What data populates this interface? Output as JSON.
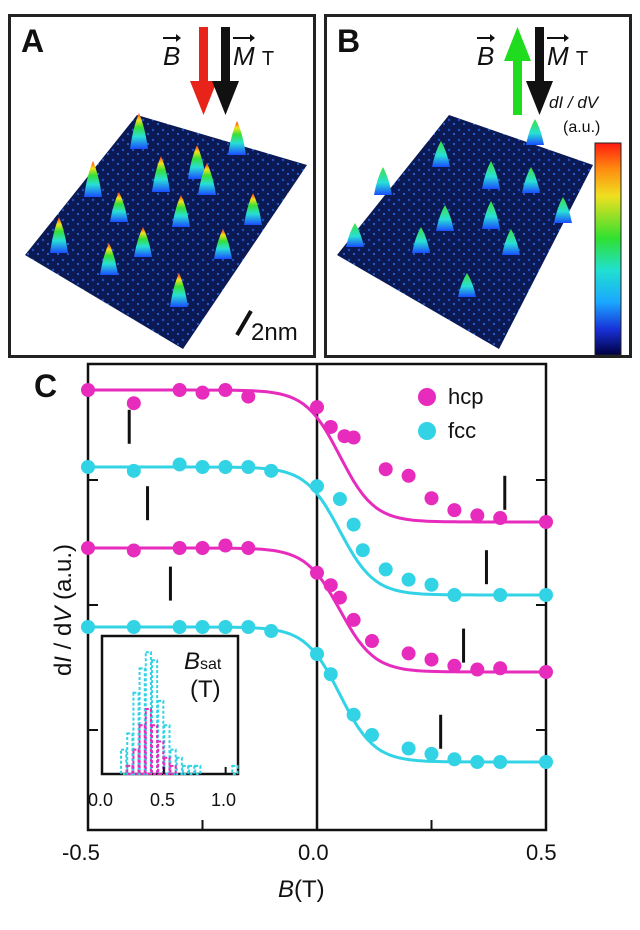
{
  "panels": {
    "a": {
      "letter": "A",
      "b_label": "B",
      "m_label": "M",
      "m_sub": "T",
      "scale_label": "2nm",
      "field_arrow_color": "#e8241a",
      "tip_arrow_color": "#111111"
    },
    "b": {
      "letter": "B",
      "b_label": "B",
      "m_label": "M",
      "m_sub": "T",
      "field_arrow_color": "#1fdc1f",
      "tip_arrow_color": "#111111",
      "colorbar_label_1": "dI / dV",
      "colorbar_label_2": "(a.u.)"
    }
  },
  "chart_data": [
    {
      "type": "scatter",
      "panel": "C",
      "xlabel": "B(T)",
      "ylabel": "dI / dV (a.u.)",
      "xlim": [
        -0.5,
        0.5
      ],
      "xticks": [
        "-0.5",
        "0.0",
        "0.5"
      ],
      "legend": [
        {
          "name": "hcp",
          "color": "#e62bbd"
        },
        {
          "name": "fcc",
          "color": "#33d3e6"
        }
      ],
      "legend_position": "top-right",
      "series": [
        {
          "color": "#e62bbd",
          "offset": 3,
          "x": [
            -0.5,
            -0.4,
            -0.3,
            -0.25,
            -0.2,
            -0.15,
            0.0,
            0.03,
            0.06,
            0.08,
            0.15,
            0.2,
            0.25,
            0.3,
            0.35,
            0.4,
            0.5
          ],
          "y": [
            1.0,
            0.9,
            1.0,
            0.98,
            1.0,
            0.95,
            0.87,
            0.72,
            0.65,
            0.64,
            0.4,
            0.35,
            0.18,
            0.09,
            0.05,
            0.03,
            0.0
          ],
          "bsat_marker": 0.41
        },
        {
          "color": "#33d3e6",
          "offset": 2,
          "x": [
            -0.5,
            -0.4,
            -0.3,
            -0.25,
            -0.2,
            -0.15,
            -0.1,
            0.0,
            0.05,
            0.08,
            0.1,
            0.15,
            0.2,
            0.25,
            0.3,
            0.4,
            0.5
          ],
          "y": [
            1.0,
            0.97,
            1.02,
            1.0,
            1.0,
            1.0,
            0.97,
            0.85,
            0.75,
            0.55,
            0.35,
            0.2,
            0.12,
            0.08,
            0.0,
            0.0,
            0.0
          ],
          "bsat_marker": 0.37
        },
        {
          "color": "#e62bbd",
          "offset": 1,
          "x": [
            -0.5,
            -0.4,
            -0.3,
            -0.25,
            -0.2,
            -0.15,
            0.0,
            0.03,
            0.05,
            0.08,
            0.12,
            0.2,
            0.25,
            0.3,
            0.35,
            0.4,
            0.5
          ],
          "y": [
            1.0,
            0.98,
            1.0,
            1.0,
            1.02,
            1.0,
            0.8,
            0.7,
            0.6,
            0.42,
            0.25,
            0.15,
            0.1,
            0.05,
            0.02,
            0.03,
            0.0
          ],
          "bsat_marker": 0.32
        },
        {
          "color": "#33d3e6",
          "offset": 0,
          "x": [
            -0.5,
            -0.4,
            -0.3,
            -0.25,
            -0.2,
            -0.15,
            -0.1,
            0.0,
            0.03,
            0.08,
            0.12,
            0.2,
            0.25,
            0.3,
            0.35,
            0.4,
            0.5
          ],
          "y": [
            1.0,
            1.0,
            1.0,
            1.0,
            1.0,
            1.0,
            0.97,
            0.8,
            0.65,
            0.35,
            0.2,
            0.1,
            0.06,
            0.02,
            0.0,
            0.0,
            0.0
          ],
          "bsat_marker": 0.27
        }
      ]
    },
    {
      "type": "bar",
      "panel": "C inset",
      "title": "B",
      "title_sub": "sat",
      "title_unit": "(T)",
      "xlim": [
        0.0,
        1.1
      ],
      "xticks": [
        "0.0",
        "0.5",
        "1.0"
      ],
      "bin_width": 0.05,
      "series": [
        {
          "name": "fcc",
          "color": "#33d3e6",
          "bins": [
            0.15,
            0.2,
            0.25,
            0.3,
            0.35,
            0.4,
            0.45,
            0.5,
            0.55,
            0.6,
            0.65,
            0.7,
            0.75,
            1.05
          ],
          "counts": [
            3,
            5,
            10,
            13,
            15,
            14,
            9,
            6,
            3,
            2,
            1,
            1,
            1,
            1
          ]
        },
        {
          "name": "hcp",
          "color": "#e62bbd",
          "bins": [
            0.2,
            0.25,
            0.3,
            0.35,
            0.4,
            0.45,
            0.5,
            0.55
          ],
          "counts": [
            1,
            3,
            6,
            8,
            6,
            4,
            2,
            1
          ]
        }
      ]
    }
  ]
}
